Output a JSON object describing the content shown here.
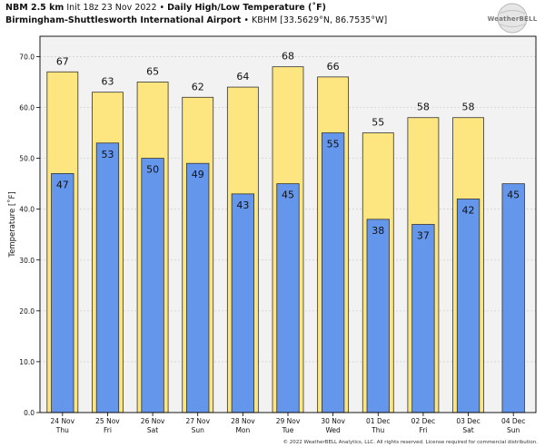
{
  "header": {
    "model": "NBM 2.5 km",
    "init": "Init 18z 23 Nov 2022",
    "sep": "•",
    "product": "Daily High/Low Temperature (˚F)",
    "station_name": "Birmingham-Shuttlesworth International Airport",
    "station_info": "KBHM [33.5629°N, 86.7535°W]"
  },
  "logo_text": "WeatherBELL",
  "copyright": "© 2022 WeatherBELL Analytics, LLC. All rights reserved. License required for commercial distribution.",
  "colors": {
    "high": "#fde680",
    "low": "#6496ec",
    "plot_bg": "#f2f2f2"
  },
  "chart_data": {
    "type": "bar",
    "ylabel": "Temperature [˚F]",
    "ylim": [
      0,
      74
    ],
    "yticks": [
      "0.0",
      "10.0",
      "20.0",
      "30.0",
      "40.0",
      "50.0",
      "60.0",
      "70.0"
    ],
    "categories": [
      [
        "24 Nov",
        "Thu"
      ],
      [
        "25 Nov",
        "Fri"
      ],
      [
        "26 Nov",
        "Sat"
      ],
      [
        "27 Nov",
        "Sun"
      ],
      [
        "28 Nov",
        "Mon"
      ],
      [
        "29 Nov",
        "Tue"
      ],
      [
        "30 Nov",
        "Wed"
      ],
      [
        "01 Dec",
        "Thu"
      ],
      [
        "02 Dec",
        "Fri"
      ],
      [
        "03 Dec",
        "Sat"
      ],
      [
        "04 Dec",
        "Sun"
      ]
    ],
    "series": [
      {
        "name": "High",
        "values": [
          67,
          63,
          65,
          62,
          64,
          68,
          66,
          55,
          58,
          58,
          null
        ],
        "labels": [
          "67",
          "63",
          "65",
          "62",
          "64",
          "68",
          "66",
          "55",
          "58",
          "58",
          null
        ]
      },
      {
        "name": "Low",
        "values": [
          47,
          53,
          50,
          49,
          43,
          45,
          55,
          38,
          37,
          42,
          45
        ],
        "labels": [
          "47",
          "53",
          "50",
          "49",
          "43",
          "45",
          "55",
          "38",
          "37",
          "42",
          "45"
        ]
      }
    ],
    "grid": true
  }
}
